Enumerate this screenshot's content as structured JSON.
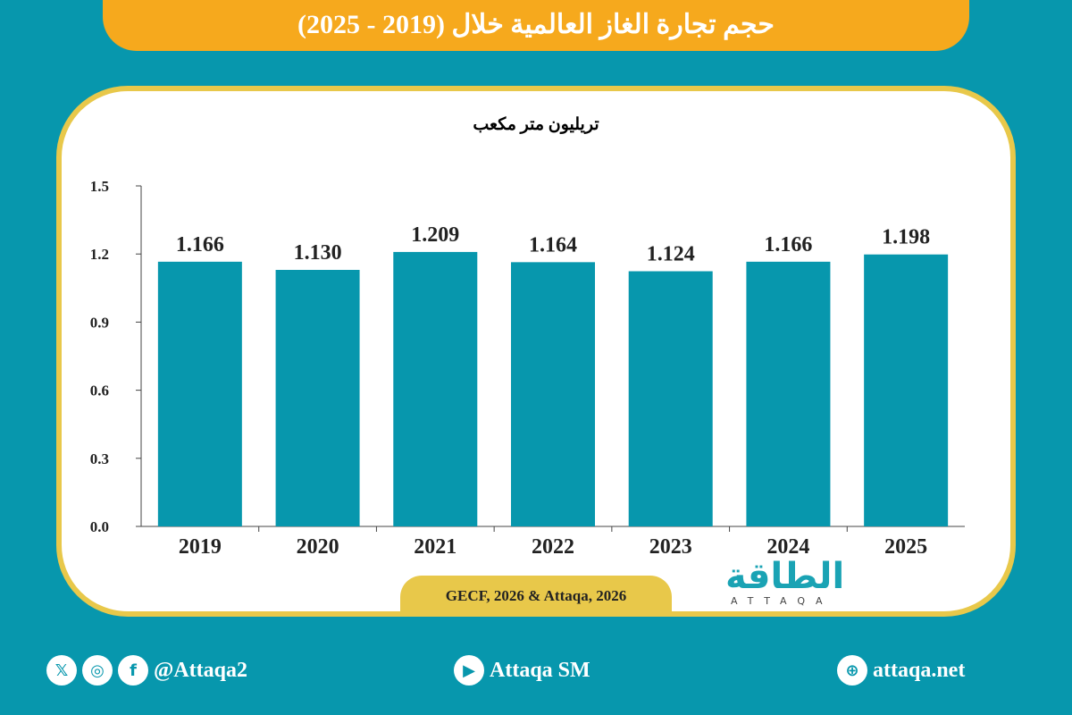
{
  "header": {
    "title": "حجم تجارة الغاز العالمية خلال (2019 - 2025)"
  },
  "chart_data": {
    "type": "bar",
    "title": "حجم تجارة الغاز العالمية خلال (2019 - 2025)",
    "ylabel": "تريليون متر مكعب",
    "categories": [
      "2019",
      "2020",
      "2021",
      "2022",
      "2023",
      "2024",
      "2025"
    ],
    "values": [
      1.166,
      1.13,
      1.209,
      1.164,
      1.124,
      1.166,
      1.198
    ],
    "value_labels": [
      "1.166",
      "1.130",
      "1.209",
      "1.164",
      "1.124",
      "1.166",
      "1.198"
    ],
    "yticks": [
      "0.0",
      "0.3",
      "0.6",
      "0.9",
      "1.2",
      "1.5"
    ],
    "ylim": [
      0,
      1.5
    ],
    "grid": false,
    "bar_color": "#0797ad"
  },
  "source": "GECF, 2026 & Attaqa, 2026",
  "logo": {
    "ar": "الطاقة",
    "en": "ATTAQA"
  },
  "footer": {
    "social": "@Attaqa2",
    "youtube": "Attaqa SM",
    "website": "attaqa.net"
  },
  "colors": {
    "background": "#0797ad",
    "banner": "#f6a91d",
    "border": "#e8c84a"
  }
}
